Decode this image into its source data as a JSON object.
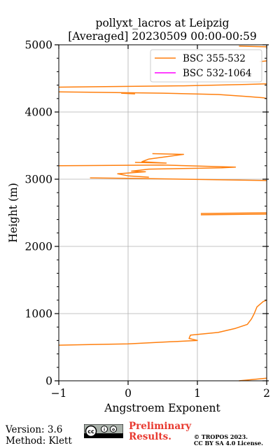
{
  "chart_data": {
    "type": "line",
    "title": "pollyxt_lacros at Leipzig",
    "subtitle": "[Averaged] 20230509 00:00-00:59",
    "xlabel": "Angstroem Exponent",
    "ylabel": "Height (m)",
    "xlim": [
      -1,
      2
    ],
    "ylim": [
      0,
      5000
    ],
    "xticks": [
      -1,
      0,
      1,
      2
    ],
    "xtick_labels": [
      "−1",
      "0",
      "1",
      "2"
    ],
    "yticks": [
      0,
      1000,
      2000,
      3000,
      4000,
      5000
    ],
    "ytick_labels": [
      "0",
      "1000",
      "2000",
      "3000",
      "4000",
      "5000"
    ],
    "grid": true,
    "legend_position": "top-right",
    "series": [
      {
        "name": "BSC 355-532",
        "color": "#ff7f0e",
        "segments": [
          [
            [
              1.6,
              0
            ],
            [
              2.0,
              40
            ]
          ],
          [
            [
              -1.0,
              530
            ],
            [
              0.0,
              550
            ],
            [
              0.6,
              580
            ],
            [
              1.0,
              600
            ],
            [
              0.88,
              630
            ],
            [
              0.9,
              680
            ],
            [
              1.3,
              720
            ],
            [
              1.55,
              780
            ],
            [
              1.72,
              840
            ],
            [
              1.78,
              920
            ],
            [
              1.82,
              1000
            ],
            [
              1.86,
              1100
            ],
            [
              1.95,
              1180
            ],
            [
              2.0,
              1200
            ]
          ],
          [
            [
              1.05,
              2470
            ],
            [
              2.0,
              2480
            ]
          ],
          [
            [
              1.05,
              2490
            ],
            [
              2.0,
              2500
            ]
          ],
          [
            [
              -0.55,
              3020
            ],
            [
              0.2,
              3010
            ],
            [
              0.8,
              3000
            ],
            [
              2.0,
              2980
            ]
          ],
          [
            [
              -1.0,
              3200
            ],
            [
              0.5,
              3210
            ],
            [
              1.55,
              3180
            ],
            [
              1.35,
              3170
            ],
            [
              0.3,
              3150
            ],
            [
              0.05,
              3120
            ],
            [
              0.25,
              3110
            ],
            [
              -0.15,
              3080
            ],
            [
              0.0,
              3050
            ],
            [
              0.3,
              3030
            ]
          ],
          [
            [
              0.1,
              3250
            ],
            [
              0.55,
              3240
            ],
            [
              0.2,
              3260
            ],
            [
              0.3,
              3300
            ],
            [
              0.8,
              3370
            ],
            [
              0.35,
              3380
            ]
          ],
          [
            [
              -1.0,
              4300
            ],
            [
              0.5,
              4280
            ],
            [
              1.3,
              4260
            ],
            [
              1.72,
              4230
            ],
            [
              1.96,
              4210
            ],
            [
              2.0,
              4200
            ]
          ],
          [
            [
              -0.1,
              4280
            ],
            [
              0.1,
              4270
            ]
          ],
          [
            [
              -1.0,
              4370
            ],
            [
              0.8,
              4390
            ],
            [
              1.7,
              4410
            ],
            [
              2.0,
              4420
            ]
          ],
          [
            [
              1.9,
              4750
            ],
            [
              2.0,
              4760
            ]
          ],
          [
            [
              1.6,
              4980
            ],
            [
              2.0,
              4970
            ]
          ]
        ]
      },
      {
        "name": "BSC 532-1064",
        "color": "#ff00ff",
        "segments": []
      }
    ]
  },
  "footer": {
    "version": "Version: 3.6",
    "method": "Method: Klett",
    "preliminary": "Preliminary",
    "results": "Results.",
    "copyright_line1": "© TROPOS 2023.",
    "copyright_line2": "CC BY SA 4.0 License."
  },
  "colors": {
    "grid": "#b0b0b0",
    "preliminary": "#e8392f"
  },
  "icons": {
    "license_badge": "cc-by-sa-badge-icon"
  }
}
